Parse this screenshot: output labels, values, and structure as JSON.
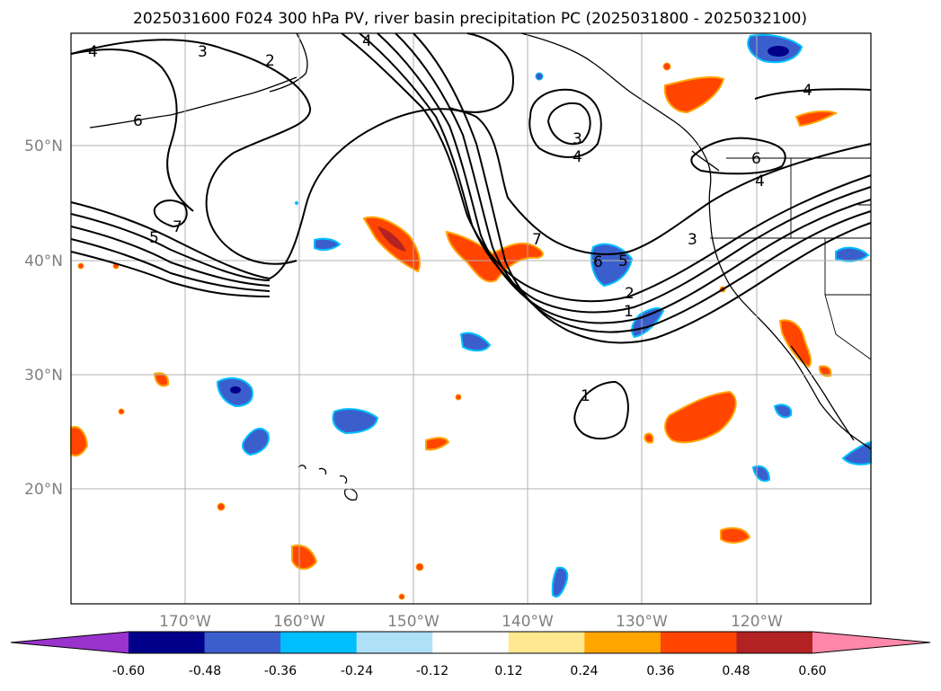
{
  "title": "2025031600 F024 300 hPa PV, river basin precipitation PC (2025031800 - 2025032100)",
  "map": {
    "lat_labels": [
      "50°N",
      "40°N",
      "30°N",
      "20°N"
    ],
    "lon_labels": [
      "170°W",
      "160°W",
      "150°W",
      "140°W",
      "130°W",
      "120°W"
    ],
    "grid_color": "#b0b0b0",
    "label_color": "#808080",
    "pv_contour_labels": [
      "4",
      "3",
      "2",
      "6",
      "7",
      "5",
      "3",
      "4",
      "7",
      "6",
      "5",
      "2",
      "1",
      "3",
      "4",
      "6",
      "4",
      "1",
      "4"
    ]
  },
  "colorbar": {
    "tick_labels": [
      "-0.60",
      "-0.48",
      "-0.36",
      "-0.24",
      "-0.12",
      "0.12",
      "0.24",
      "0.36",
      "0.48",
      "0.60"
    ],
    "colors": [
      "#9933cc",
      "#00008b",
      "#3a5fcd",
      "#00bfff",
      "#aee1f7",
      "#ffffff",
      "#ffe88f",
      "#ffa500",
      "#ff4500",
      "#b22222",
      "#ff88aa"
    ]
  }
}
